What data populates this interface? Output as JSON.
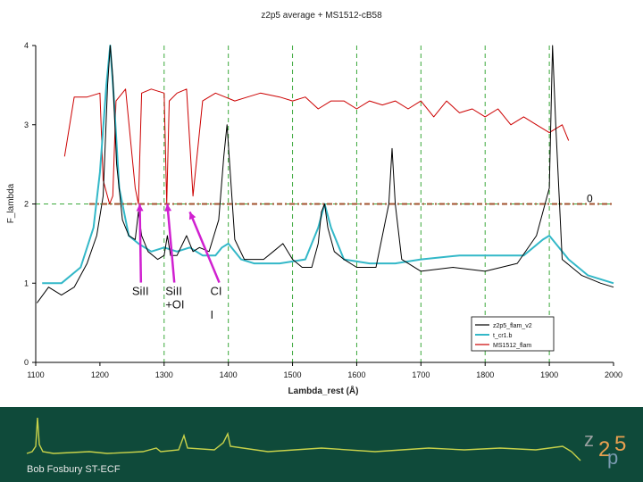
{
  "chart_data": {
    "type": "line",
    "title": "z2p5 average + MS1512-cB58",
    "xlabel": "Lambda_rest (Å)",
    "ylabel": "F_lambda",
    "xlim": [
      1100,
      2000
    ],
    "ylim": [
      0,
      4
    ],
    "xticks": [
      "1100",
      "1200",
      "1300",
      "1400",
      "1500",
      "1600",
      "1700",
      "1800",
      "1900",
      "2000"
    ],
    "yticks": [
      "0",
      "1",
      "2",
      "3",
      "4"
    ],
    "grid_x": [
      1300,
      1400,
      1500,
      1600,
      1700,
      1800,
      1900
    ],
    "grid_y": [
      2
    ],
    "reference_line": {
      "y": 2.0,
      "label": "0",
      "color": "#a0522d"
    },
    "legend": [
      {
        "name": "z2p5_flam_v2",
        "color": "#000000"
      },
      {
        "name": "t_cr1.b",
        "color": "#33b8c8"
      },
      {
        "name": "MS1512_flam",
        "color": "#cc0000"
      }
    ],
    "series": [
      {
        "name": "z2p5_flam_v2",
        "color": "#000000",
        "x": [
          1102,
          1120,
          1140,
          1160,
          1180,
          1195,
          1205,
          1212,
          1216,
          1220,
          1226,
          1235,
          1245,
          1255,
          1260,
          1265,
          1275,
          1290,
          1300,
          1305,
          1310,
          1320,
          1335,
          1345,
          1355,
          1370,
          1385,
          1393,
          1398,
          1403,
          1410,
          1425,
          1440,
          1455,
          1470,
          1485,
          1500,
          1515,
          1530,
          1540,
          1545,
          1550,
          1555,
          1565,
          1580,
          1600,
          1630,
          1650,
          1655,
          1660,
          1670,
          1700,
          1750,
          1800,
          1850,
          1880,
          1890,
          1900,
          1905,
          1910,
          1920,
          1950,
          1980,
          2000
        ],
        "y": [
          0.75,
          0.95,
          0.85,
          0.95,
          1.25,
          1.6,
          2.1,
          3.5,
          4.0,
          3.6,
          2.5,
          1.8,
          1.6,
          1.55,
          1.9,
          1.6,
          1.4,
          1.3,
          1.35,
          1.6,
          1.35,
          1.35,
          1.6,
          1.4,
          1.45,
          1.4,
          1.8,
          2.6,
          3.0,
          2.4,
          1.55,
          1.3,
          1.3,
          1.3,
          1.4,
          1.5,
          1.3,
          1.2,
          1.2,
          1.5,
          1.9,
          2.0,
          1.7,
          1.4,
          1.3,
          1.2,
          1.2,
          2.0,
          2.7,
          2.0,
          1.3,
          1.15,
          1.2,
          1.15,
          1.25,
          1.6,
          1.9,
          2.2,
          4.0,
          3.0,
          1.3,
          1.1,
          1.0,
          0.95
        ]
      },
      {
        "name": "t_cr1.b",
        "color": "#33b8c8",
        "x": [
          1110,
          1140,
          1170,
          1190,
          1200,
          1210,
          1216,
          1222,
          1230,
          1245,
          1260,
          1280,
          1300,
          1320,
          1340,
          1360,
          1380,
          1390,
          1400,
          1420,
          1440,
          1480,
          1520,
          1540,
          1550,
          1560,
          1580,
          1620,
          1660,
          1700,
          1760,
          1820,
          1860,
          1890,
          1900,
          1910,
          1930,
          1960,
          2000
        ],
        "y": [
          1.0,
          1.0,
          1.2,
          1.7,
          2.4,
          3.5,
          4.0,
          3.3,
          2.2,
          1.6,
          1.5,
          1.4,
          1.45,
          1.4,
          1.45,
          1.35,
          1.35,
          1.45,
          1.5,
          1.3,
          1.25,
          1.25,
          1.3,
          1.7,
          2.0,
          1.7,
          1.3,
          1.25,
          1.25,
          1.3,
          1.35,
          1.35,
          1.35,
          1.55,
          1.6,
          1.5,
          1.3,
          1.1,
          1.0
        ]
      },
      {
        "name": "MS1512_flam",
        "color": "#cc0000",
        "x": [
          1145,
          1160,
          1180,
          1200,
          1205,
          1215,
          1220,
          1225,
          1240,
          1255,
          1260,
          1265,
          1280,
          1300,
          1304,
          1308,
          1320,
          1335,
          1345,
          1360,
          1380,
          1395,
          1410,
          1430,
          1450,
          1480,
          1500,
          1520,
          1540,
          1560,
          1580,
          1600,
          1620,
          1640,
          1660,
          1680,
          1700,
          1720,
          1740,
          1760,
          1780,
          1800,
          1820,
          1840,
          1860,
          1880,
          1900,
          1920,
          1930
        ],
        "y": [
          2.6,
          3.35,
          3.35,
          3.4,
          2.3,
          2.0,
          2.1,
          3.3,
          3.45,
          2.2,
          2.0,
          3.4,
          3.45,
          3.4,
          2.0,
          3.3,
          3.4,
          3.45,
          2.1,
          3.3,
          3.4,
          3.35,
          3.3,
          3.35,
          3.4,
          3.35,
          3.3,
          3.35,
          3.2,
          3.3,
          3.3,
          3.2,
          3.3,
          3.25,
          3.3,
          3.2,
          3.3,
          3.1,
          3.3,
          3.15,
          3.2,
          3.1,
          3.2,
          3.0,
          3.1,
          3.0,
          2.9,
          3.0,
          2.8
        ]
      }
    ],
    "annotations": [
      {
        "text": "SiII",
        "x": 1250,
        "y": 0.85,
        "arrow_to": [
          1262,
          2.0
        ]
      },
      {
        "text": "SiII",
        "x": 1302,
        "y": 0.85,
        "arrow_to": [
          1305,
          2.0
        ]
      },
      {
        "text": "+OI",
        "x": 1302,
        "y": 0.68
      },
      {
        "text": "CI",
        "x": 1372,
        "y": 0.85,
        "arrow_to": [
          1340,
          1.9
        ]
      },
      {
        "text": "I",
        "x": 1372,
        "y": 0.55
      }
    ]
  },
  "footer": {
    "credit": "Bob Fosbury ST-ECF",
    "logo_z": "z",
    "logo_2": "2",
    "logo_p": "p",
    "logo_5": "5"
  }
}
